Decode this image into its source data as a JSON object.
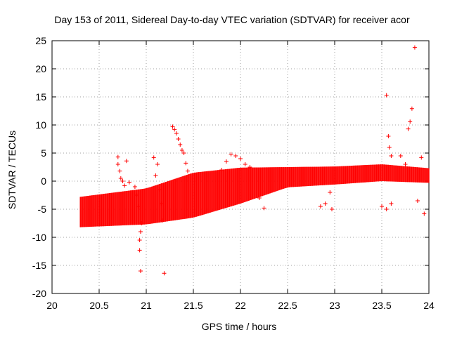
{
  "chart_data": {
    "type": "scatter",
    "title": "Day 153 of 2011, Sidereal Day-to-day VTEC variation (SDTVAR) for receiver acor",
    "xlabel": "GPS time / hours",
    "ylabel": "SDTVAR / TECUs",
    "xlim": [
      20,
      24
    ],
    "ylim": [
      -20,
      25
    ],
    "xticks": [
      20,
      20.5,
      21,
      21.5,
      22,
      22.5,
      23,
      23.5,
      24
    ],
    "xtick_labels": [
      "20",
      "20.5",
      "21",
      "21.5",
      "22",
      "22.5",
      "23",
      "23.5",
      "24"
    ],
    "yticks": [
      -20,
      -15,
      -10,
      -5,
      0,
      5,
      10,
      15,
      20,
      25
    ],
    "ytick_labels": [
      "-20",
      "-15",
      "-10",
      "-5",
      "0",
      "5",
      "10",
      "15",
      "20",
      "25"
    ],
    "grid": true,
    "marker": "+",
    "marker_color": "#ff0000",
    "band": {
      "x_start": 20.3,
      "x_end": 24.0,
      "centerline": [
        {
          "x": 20.3,
          "y": -5.5
        },
        {
          "x": 21.0,
          "y": -4.5
        },
        {
          "x": 21.5,
          "y": -2.5
        },
        {
          "x": 22.0,
          "y": -0.8
        },
        {
          "x": 22.5,
          "y": 0.7
        },
        {
          "x": 23.0,
          "y": 1.0
        },
        {
          "x": 23.5,
          "y": 1.5
        },
        {
          "x": 24.0,
          "y": 1.0
        }
      ],
      "spread": [
        {
          "x": 20.3,
          "half": 2.7
        },
        {
          "x": 21.0,
          "half": 3.2
        },
        {
          "x": 21.5,
          "half": 4.0
        },
        {
          "x": 22.0,
          "half": 3.2
        },
        {
          "x": 22.5,
          "half": 1.8
        },
        {
          "x": 23.0,
          "half": 1.6
        },
        {
          "x": 23.5,
          "half": 1.5
        },
        {
          "x": 24.0,
          "half": 1.3
        }
      ]
    },
    "series": [
      {
        "name": "features",
        "points": [
          {
            "x": 20.7,
            "y": 4.3
          },
          {
            "x": 20.7,
            "y": 3.0
          },
          {
            "x": 20.72,
            "y": 1.8
          },
          {
            "x": 20.73,
            "y": 0.5
          },
          {
            "x": 20.75,
            "y": 0.0
          },
          {
            "x": 20.77,
            "y": -0.8
          },
          {
            "x": 20.79,
            "y": 3.6
          },
          {
            "x": 20.82,
            "y": -0.2
          },
          {
            "x": 20.88,
            "y": -1.0
          },
          {
            "x": 20.9,
            "y": -2.5
          },
          {
            "x": 20.92,
            "y": -4.5
          },
          {
            "x": 20.93,
            "y": -10.5
          },
          {
            "x": 20.93,
            "y": -12.3
          },
          {
            "x": 20.94,
            "y": -9.0
          },
          {
            "x": 20.95,
            "y": -7.5
          },
          {
            "x": 20.94,
            "y": -16.0
          },
          {
            "x": 21.08,
            "y": 4.2
          },
          {
            "x": 21.1,
            "y": 1.0
          },
          {
            "x": 21.12,
            "y": 3.0
          },
          {
            "x": 21.14,
            "y": -1.5
          },
          {
            "x": 21.16,
            "y": -4.0
          },
          {
            "x": 21.17,
            "y": -7.0
          },
          {
            "x": 21.19,
            "y": -16.4
          },
          {
            "x": 21.28,
            "y": 9.7
          },
          {
            "x": 21.3,
            "y": 9.2
          },
          {
            "x": 21.32,
            "y": 8.5
          },
          {
            "x": 21.34,
            "y": 7.5
          },
          {
            "x": 21.36,
            "y": 6.5
          },
          {
            "x": 21.38,
            "y": 5.5
          },
          {
            "x": 21.4,
            "y": 5.0
          },
          {
            "x": 21.42,
            "y": 3.2
          },
          {
            "x": 21.44,
            "y": 1.8
          },
          {
            "x": 21.8,
            "y": 2.0
          },
          {
            "x": 21.85,
            "y": 3.5
          },
          {
            "x": 21.9,
            "y": 4.8
          },
          {
            "x": 21.95,
            "y": 4.5
          },
          {
            "x": 22.0,
            "y": 4.0
          },
          {
            "x": 22.05,
            "y": 3.0
          },
          {
            "x": 22.1,
            "y": 2.5
          },
          {
            "x": 22.2,
            "y": -3.0
          },
          {
            "x": 22.25,
            "y": -4.8
          },
          {
            "x": 22.85,
            "y": -4.5
          },
          {
            "x": 22.9,
            "y": -4.0
          },
          {
            "x": 22.95,
            "y": -2.0
          },
          {
            "x": 22.97,
            "y": -5.0
          },
          {
            "x": 23.5,
            "y": -4.5
          },
          {
            "x": 23.55,
            "y": -5.0
          },
          {
            "x": 23.6,
            "y": -4.0
          },
          {
            "x": 23.55,
            "y": 15.3
          },
          {
            "x": 23.57,
            "y": 8.0
          },
          {
            "x": 23.58,
            "y": 6.0
          },
          {
            "x": 23.6,
            "y": 4.5
          },
          {
            "x": 23.7,
            "y": 4.5
          },
          {
            "x": 23.75,
            "y": 3.0
          },
          {
            "x": 23.78,
            "y": 9.3
          },
          {
            "x": 23.8,
            "y": 10.6
          },
          {
            "x": 23.82,
            "y": 12.9
          },
          {
            "x": 23.85,
            "y": 23.8
          },
          {
            "x": 23.88,
            "y": -3.5
          },
          {
            "x": 23.92,
            "y": 4.2
          },
          {
            "x": 23.95,
            "y": -5.8
          }
        ]
      }
    ]
  }
}
